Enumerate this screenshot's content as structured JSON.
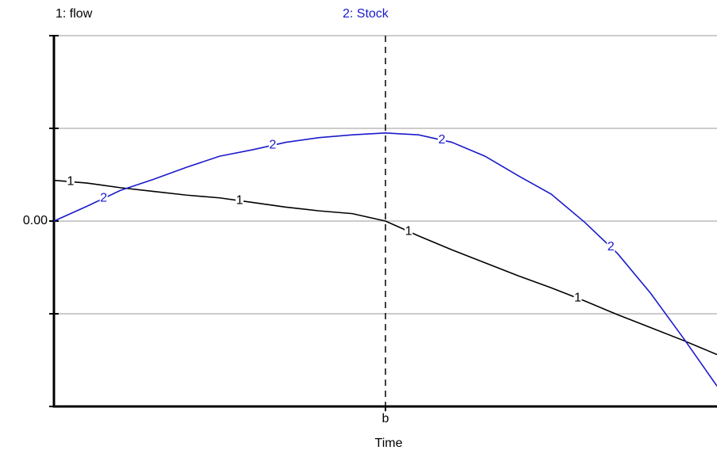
{
  "chart_data": {
    "type": "line",
    "x_label": "Time",
    "xlim": [
      0,
      10
    ],
    "xticks": [
      {
        "value": 5,
        "label": "b"
      }
    ],
    "ylim": [
      -2,
      2
    ],
    "yticks": [
      {
        "value": 0,
        "label": "0.00"
      }
    ],
    "yminor_ticks": [
      -2,
      -1,
      1,
      2
    ],
    "grid": true,
    "x": [
      0,
      0.5,
      1,
      1.5,
      2,
      2.5,
      3,
      3.5,
      4,
      4.5,
      5,
      5.5,
      6,
      6.5,
      7,
      7.5,
      8,
      8.5,
      9,
      9.5,
      10
    ],
    "series": [
      {
        "name": "1: flow",
        "marker_label": "1",
        "color": "#000000",
        "values": [
          0.44,
          0.41,
          0.36,
          0.32,
          0.28,
          0.25,
          0.2,
          0.15,
          0.11,
          0.08,
          0,
          -0.16,
          -0.31,
          -0.45,
          -0.59,
          -0.72,
          -0.86,
          -1.01,
          -1.15,
          -1.29,
          -1.44
        ]
      },
      {
        "name": "2: Stock",
        "marker_label": "2",
        "color": "#1a1acc",
        "values": [
          0,
          0.16,
          0.33,
          0.45,
          0.58,
          0.7,
          0.77,
          0.85,
          0.9,
          0.93,
          0.95,
          0.93,
          0.85,
          0.7,
          0.49,
          0.29,
          -0.01,
          -0.35,
          -0.78,
          -1.27,
          -1.78
        ]
      }
    ]
  }
}
